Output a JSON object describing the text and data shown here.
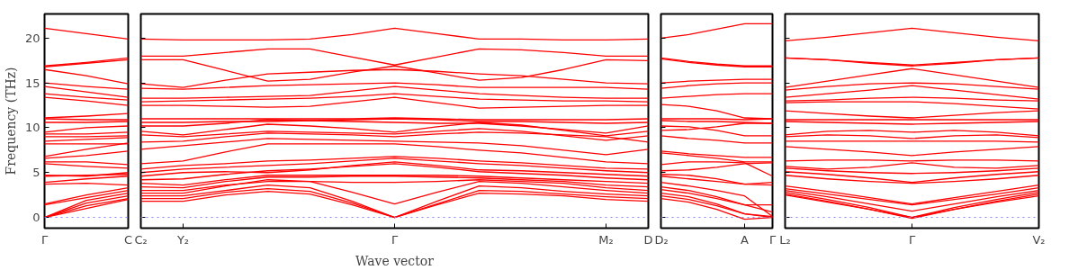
{
  "chart_data": [
    {
      "type": "line",
      "ylabel": "Frequency (THz)",
      "categories": [
        "Γ",
        null,
        "C"
      ],
      "ylim": [
        -1.2,
        22.7
      ],
      "yticks": [
        0,
        5,
        10,
        15,
        20
      ],
      "grid": false,
      "ref_lines": [
        {
          "axis": "y",
          "value": 0,
          "color": "#8080ff",
          "line_style": "dotted"
        }
      ],
      "series": [
        {
          "color": "#ff0000",
          "values": [
            21.1,
            20.5,
            19.9
          ]
        },
        {
          "color": "#ff0000",
          "values": [
            16.9,
            17.3,
            17.8
          ]
        },
        {
          "color": "#ff0000",
          "values": [
            16.8,
            17.2,
            17.6
          ]
        },
        {
          "color": "#ff0000",
          "values": [
            16.5,
            15.8,
            14.9
          ]
        },
        {
          "color": "#ff0000",
          "values": [
            15.0,
            14.6,
            14.3
          ]
        },
        {
          "color": "#ff0000",
          "values": [
            14.6,
            14.0,
            13.4
          ]
        },
        {
          "color": "#ff0000",
          "values": [
            13.8,
            13.4,
            13.1
          ]
        },
        {
          "color": "#ff0000",
          "values": [
            13.4,
            13.0,
            12.5
          ]
        },
        {
          "color": "#ff0000",
          "values": [
            11.1,
            11.3,
            11.6
          ]
        },
        {
          "color": "#ff0000",
          "values": [
            11.0,
            10.9,
            10.9
          ]
        },
        {
          "color": "#ff0000",
          "values": [
            10.6,
            10.6,
            10.7
          ]
        },
        {
          "color": "#ff0000",
          "values": [
            9.5,
            10.0,
            10.2
          ]
        },
        {
          "color": "#ff0000",
          "values": [
            9.3,
            9.3,
            9.5
          ]
        },
        {
          "color": "#ff0000",
          "values": [
            9.0,
            9.0,
            9.1
          ]
        },
        {
          "color": "#ff0000",
          "values": [
            8.5,
            8.7,
            8.9
          ]
        },
        {
          "color": "#ff0000",
          "values": [
            8.2,
            8.2,
            8.2
          ]
        },
        {
          "color": "#ff0000",
          "values": [
            6.8,
            7.6,
            8.3
          ]
        },
        {
          "color": "#ff0000",
          "values": [
            6.6,
            6.9,
            7.4
          ]
        },
        {
          "color": "#ff0000",
          "values": [
            6.2,
            6.2,
            5.9
          ]
        },
        {
          "color": "#ff0000",
          "values": [
            6.0,
            5.7,
            5.5
          ]
        },
        {
          "color": "#ff0000",
          "values": [
            4.7,
            4.6,
            5.0
          ]
        },
        {
          "color": "#ff0000",
          "values": [
            4.6,
            4.7,
            4.8
          ]
        },
        {
          "color": "#ff0000",
          "values": [
            3.9,
            4.3,
            4.6
          ]
        },
        {
          "color": "#ff0000",
          "values": [
            3.7,
            3.8,
            3.6
          ]
        },
        {
          "color": "#ff0000",
          "values": [
            1.5,
            2.5,
            3.3
          ]
        },
        {
          "color": "#ff0000",
          "values": [
            1.4,
            2.2,
            3.0
          ]
        },
        {
          "color": "#ff0000",
          "values": [
            0.0,
            1.9,
            2.7
          ]
        },
        {
          "color": "#ff0000",
          "values": [
            0.0,
            1.6,
            2.4
          ]
        },
        {
          "color": "#ff0000",
          "values": [
            0.0,
            1.3,
            2.1
          ]
        },
        {
          "color": "#ff0000",
          "values": [
            0.0,
            1.0,
            2.0
          ]
        }
      ]
    },
    {
      "type": "line",
      "xlabel": "Wave vector",
      "categories": [
        "C₂",
        "Y₂",
        null,
        null,
        null,
        null,
        "Γ",
        null,
        null,
        null,
        null,
        "M₂",
        "D"
      ],
      "ylim": [
        -1.2,
        22.7
      ],
      "yticks": [
        0,
        5,
        10,
        15,
        20
      ],
      "tick_labels": "x",
      "grid": false,
      "ref_lines": [
        {
          "axis": "y",
          "value": 0,
          "color": "#8080ff",
          "line_style": "dotted"
        }
      ],
      "series": [
        {
          "color": "#ff0000",
          "values": [
            19.9,
            19.8,
            19.8,
            19.8,
            19.9,
            20.4,
            21.1,
            20.5,
            19.9,
            19.9,
            19.8,
            19.8,
            19.9
          ]
        },
        {
          "color": "#ff0000",
          "values": [
            18.0,
            18.0,
            18.4,
            18.8,
            18.8,
            17.9,
            17.0,
            17.9,
            18.8,
            18.7,
            18.4,
            18.0,
            18.0
          ]
        },
        {
          "color": "#ff0000",
          "values": [
            17.6,
            17.6,
            16.4,
            15.2,
            15.4,
            16.2,
            16.9,
            16.1,
            15.3,
            15.6,
            16.5,
            17.6,
            17.5
          ]
        },
        {
          "color": "#ff0000",
          "values": [
            14.9,
            14.5,
            15.3,
            16.0,
            16.2,
            16.4,
            16.5,
            16.3,
            16.0,
            15.8,
            15.4,
            15.0,
            14.9
          ]
        },
        {
          "color": "#ff0000",
          "values": [
            14.4,
            14.3,
            14.5,
            14.7,
            14.8,
            14.9,
            15.0,
            14.8,
            14.5,
            14.5,
            14.5,
            14.5,
            14.3
          ]
        },
        {
          "color": "#ff0000",
          "values": [
            13.3,
            13.3,
            13.4,
            13.5,
            13.6,
            14.1,
            14.6,
            14.2,
            13.8,
            13.6,
            13.4,
            13.3,
            13.3
          ]
        },
        {
          "color": "#ff0000",
          "values": [
            12.9,
            13.0,
            13.1,
            13.2,
            13.3,
            13.5,
            13.8,
            13.5,
            13.2,
            13.1,
            13.0,
            13.0,
            12.9
          ]
        },
        {
          "color": "#ff0000",
          "values": [
            12.5,
            12.5,
            12.4,
            12.3,
            12.4,
            12.9,
            13.4,
            12.8,
            12.2,
            12.3,
            12.4,
            12.5,
            12.5
          ]
        },
        {
          "color": "#ff0000",
          "values": [
            11.0,
            11.0,
            11.0,
            11.0,
            11.0,
            11.0,
            11.1,
            11.0,
            10.9,
            10.9,
            10.9,
            10.9,
            11.0
          ]
        },
        {
          "color": "#ff0000",
          "values": [
            10.6,
            10.6,
            10.7,
            10.7,
            10.8,
            10.9,
            11.0,
            10.9,
            10.7,
            10.7,
            10.6,
            10.5,
            10.6
          ]
        },
        {
          "color": "#ff0000",
          "values": [
            10.2,
            10.2,
            10.5,
            10.9,
            10.8,
            10.7,
            10.6,
            10.5,
            10.5,
            10.2,
            9.8,
            9.4,
            10.2
          ]
        },
        {
          "color": "#ff0000",
          "values": [
            9.6,
            9.2,
            9.8,
            10.4,
            10.2,
            9.9,
            9.5,
            10.1,
            10.6,
            10.3,
            9.7,
            9.1,
            9.6
          ]
        },
        {
          "color": "#ff0000",
          "values": [
            9.2,
            9.0,
            9.3,
            9.6,
            9.5,
            9.4,
            9.3,
            9.6,
            9.9,
            9.6,
            9.1,
            8.6,
            9.1
          ]
        },
        {
          "color": "#ff0000",
          "values": [
            8.4,
            8.5,
            9.0,
            9.4,
            9.3,
            9.2,
            9.0,
            9.3,
            9.5,
            9.4,
            9.2,
            9.0,
            8.4
          ]
        },
        {
          "color": "#ff0000",
          "values": [
            7.6,
            8.0,
            8.4,
            8.8,
            8.7,
            8.6,
            8.5,
            8.4,
            8.3,
            8.0,
            7.5,
            7.0,
            7.6
          ]
        },
        {
          "color": "#ff0000",
          "values": [
            6.0,
            6.3,
            7.3,
            8.2,
            8.2,
            8.2,
            8.2,
            7.9,
            7.5,
            7.2,
            6.7,
            6.2,
            6.0
          ]
        },
        {
          "color": "#ff0000",
          "values": [
            5.4,
            5.8,
            6.0,
            6.3,
            6.4,
            6.6,
            6.8,
            6.6,
            6.3,
            6.1,
            5.8,
            5.5,
            5.4
          ]
        },
        {
          "color": "#ff0000",
          "values": [
            5.0,
            5.4,
            5.6,
            5.8,
            6.0,
            6.3,
            6.6,
            6.3,
            6.0,
            5.8,
            5.5,
            5.2,
            5.0
          ]
        },
        {
          "color": "#ff0000",
          "values": [
            4.6,
            5.0,
            5.1,
            5.0,
            5.3,
            5.8,
            6.2,
            5.8,
            5.3,
            5.2,
            5.0,
            4.8,
            4.6
          ]
        },
        {
          "color": "#ff0000",
          "values": [
            4.2,
            4.3,
            4.8,
            5.2,
            5.4,
            5.7,
            6.0,
            5.6,
            5.1,
            4.9,
            4.7,
            4.4,
            4.2
          ]
        },
        {
          "color": "#ff0000",
          "values": [
            3.8,
            3.6,
            4.2,
            4.7,
            4.7,
            4.7,
            4.7,
            4.7,
            4.6,
            4.4,
            4.2,
            4.0,
            3.8
          ]
        },
        {
          "color": "#ff0000",
          "values": [
            3.4,
            3.3,
            4.0,
            4.5,
            4.5,
            4.6,
            4.6,
            4.5,
            4.4,
            4.2,
            4.0,
            3.6,
            3.4
          ]
        },
        {
          "color": "#ff0000",
          "values": [
            3.0,
            3.0,
            3.6,
            4.0,
            4.0,
            3.9,
            3.9,
            4.0,
            4.2,
            4.0,
            3.8,
            3.3,
            3.0
          ]
        },
        {
          "color": "#ff0000",
          "values": [
            2.7,
            2.7,
            3.5,
            4.2,
            4.0,
            2.8,
            1.5,
            2.8,
            4.0,
            3.8,
            3.4,
            3.0,
            2.7
          ]
        },
        {
          "color": "#ff0000",
          "values": [
            2.4,
            2.4,
            3.0,
            3.6,
            3.3,
            1.8,
            0.0,
            1.8,
            3.5,
            3.3,
            2.9,
            2.6,
            2.4
          ]
        },
        {
          "color": "#ff0000",
          "values": [
            2.1,
            2.1,
            2.8,
            3.2,
            2.9,
            1.6,
            0.0,
            1.5,
            3.0,
            2.9,
            2.6,
            2.3,
            2.1
          ]
        },
        {
          "color": "#ff0000",
          "values": [
            1.8,
            1.8,
            2.5,
            2.9,
            2.6,
            1.4,
            0.0,
            1.4,
            2.7,
            2.6,
            2.4,
            2.0,
            1.8
          ]
        }
      ]
    },
    {
      "type": "line",
      "categories": [
        "D₂",
        null,
        null,
        "A",
        "Γ"
      ],
      "ylim": [
        -1.2,
        22.7
      ],
      "yticks": [
        0,
        5,
        10,
        15,
        20
      ],
      "tick_labels": "x",
      "grid": false,
      "ref_lines": [
        {
          "axis": "y",
          "value": 0,
          "color": "#8080ff",
          "line_style": "dotted"
        }
      ],
      "series": [
        {
          "color": "#ff0000",
          "values": [
            20.0,
            20.4,
            21.0,
            21.6,
            21.6
          ]
        },
        {
          "color": "#ff0000",
          "values": [
            17.8,
            17.4,
            17.1,
            16.9,
            16.9
          ]
        },
        {
          "color": "#ff0000",
          "values": [
            17.7,
            17.3,
            17.0,
            16.8,
            16.8
          ]
        },
        {
          "color": "#ff0000",
          "values": [
            15.0,
            15.2,
            15.3,
            15.4,
            15.4
          ]
        },
        {
          "color": "#ff0000",
          "values": [
            14.4,
            14.7,
            14.9,
            15.0,
            15.0
          ]
        },
        {
          "color": "#ff0000",
          "values": [
            13.3,
            13.5,
            13.7,
            13.8,
            13.8
          ]
        },
        {
          "color": "#ff0000",
          "values": [
            12.6,
            12.4,
            11.9,
            11.1,
            11.0
          ]
        },
        {
          "color": "#ff0000",
          "values": [
            11.0,
            11.0,
            11.0,
            10.9,
            11.0
          ]
        },
        {
          "color": "#ff0000",
          "values": [
            10.8,
            10.7,
            10.7,
            10.6,
            10.5
          ]
        },
        {
          "color": "#ff0000",
          "values": [
            10.2,
            10.1,
            9.7,
            9.1,
            9.1
          ]
        },
        {
          "color": "#ff0000",
          "values": [
            9.7,
            9.8,
            10.1,
            10.5,
            10.5
          ]
        },
        {
          "color": "#ff0000",
          "values": [
            9.1,
            8.8,
            8.6,
            8.3,
            8.3
          ]
        },
        {
          "color": "#ff0000",
          "values": [
            7.4,
            7.1,
            6.9,
            6.7,
            6.7
          ]
        },
        {
          "color": "#ff0000",
          "values": [
            7.2,
            6.9,
            6.6,
            6.2,
            6.2
          ]
        },
        {
          "color": "#ff0000",
          "values": [
            5.9,
            6.2,
            6.2,
            6.1,
            4.6
          ]
        },
        {
          "color": "#ff0000",
          "values": [
            5.2,
            5.3,
            5.6,
            6.0,
            6.1
          ]
        },
        {
          "color": "#ff0000",
          "values": [
            4.8,
            4.7,
            4.3,
            3.7,
            3.9
          ]
        },
        {
          "color": "#ff0000",
          "values": [
            4.6,
            4.3,
            4.0,
            3.7,
            3.6
          ]
        },
        {
          "color": "#ff0000",
          "values": [
            3.9,
            3.5,
            3.0,
            2.4,
            0.1
          ]
        },
        {
          "color": "#ff0000",
          "values": [
            3.4,
            3.0,
            2.3,
            1.4,
            1.4
          ]
        },
        {
          "color": "#ff0000",
          "values": [
            3.1,
            2.7,
            2.1,
            1.4,
            0.6
          ]
        },
        {
          "color": "#ff0000",
          "values": [
            2.7,
            2.3,
            1.5,
            0.4,
            0.1
          ]
        },
        {
          "color": "#ff0000",
          "values": [
            2.4,
            2.0,
            1.3,
            0.4,
            0.0
          ]
        },
        {
          "color": "#ff0000",
          "values": [
            2.1,
            1.7,
            0.9,
            -0.2,
            0.0
          ]
        }
      ]
    },
    {
      "type": "line",
      "categories": [
        "L₂",
        null,
        null,
        "Γ",
        null,
        null,
        "V₂"
      ],
      "ylim": [
        -1.2,
        22.7
      ],
      "yticks": [
        0,
        5,
        10,
        15,
        20
      ],
      "tick_labels": "x",
      "grid": false,
      "ref_lines": [
        {
          "axis": "y",
          "value": 0,
          "color": "#8080ff",
          "line_style": "dotted"
        }
      ],
      "series": [
        {
          "color": "#ff0000",
          "values": [
            19.7,
            20.1,
            20.6,
            21.1,
            20.6,
            20.1,
            19.7
          ]
        },
        {
          "color": "#ff0000",
          "values": [
            17.8,
            17.6,
            17.3,
            17.0,
            17.3,
            17.6,
            17.8
          ]
        },
        {
          "color": "#ff0000",
          "values": [
            17.8,
            17.6,
            17.2,
            16.9,
            17.2,
            17.6,
            17.8
          ]
        },
        {
          "color": "#ff0000",
          "values": [
            14.5,
            15.2,
            15.9,
            16.6,
            15.9,
            15.2,
            14.5
          ]
        },
        {
          "color": "#ff0000",
          "values": [
            14.2,
            14.6,
            14.9,
            15.0,
            14.9,
            14.6,
            14.3
          ]
        },
        {
          "color": "#ff0000",
          "values": [
            13.4,
            13.8,
            14.2,
            14.7,
            14.2,
            13.7,
            13.2
          ]
        },
        {
          "color": "#ff0000",
          "values": [
            13.0,
            13.1,
            13.3,
            13.4,
            13.3,
            13.1,
            13.0
          ]
        },
        {
          "color": "#ff0000",
          "values": [
            12.8,
            12.9,
            12.9,
            12.9,
            12.7,
            12.4,
            12.1
          ]
        },
        {
          "color": "#ff0000",
          "values": [
            11.9,
            11.6,
            11.3,
            11.1,
            11.4,
            11.7,
            11.9
          ]
        },
        {
          "color": "#ff0000",
          "values": [
            10.9,
            10.9,
            10.9,
            10.9,
            10.9,
            10.9,
            10.9
          ]
        },
        {
          "color": "#ff0000",
          "values": [
            10.7,
            10.6,
            10.5,
            10.4,
            10.5,
            10.6,
            10.7
          ]
        },
        {
          "color": "#ff0000",
          "values": [
            9.2,
            9.6,
            9.7,
            9.5,
            9.7,
            9.5,
            9.1
          ]
        },
        {
          "color": "#ff0000",
          "values": [
            9.0,
            9.2,
            9.1,
            8.8,
            9.1,
            9.2,
            8.9
          ]
        },
        {
          "color": "#ff0000",
          "values": [
            8.5,
            8.5,
            8.5,
            8.5,
            8.5,
            8.5,
            8.4
          ]
        },
        {
          "color": "#ff0000",
          "values": [
            7.9,
            7.6,
            7.3,
            6.9,
            7.3,
            7.6,
            7.9
          ]
        },
        {
          "color": "#ff0000",
          "values": [
            6.3,
            6.4,
            6.4,
            6.3,
            6.4,
            6.4,
            6.3
          ]
        },
        {
          "color": "#ff0000",
          "values": [
            5.7,
            5.4,
            5.6,
            6.1,
            5.6,
            5.5,
            5.8
          ]
        },
        {
          "color": "#ff0000",
          "values": [
            5.5,
            5.2,
            5.0,
            4.9,
            5.0,
            5.2,
            5.5
          ]
        },
        {
          "color": "#ff0000",
          "values": [
            5.1,
            4.8,
            4.4,
            3.9,
            4.4,
            4.8,
            5.1
          ]
        },
        {
          "color": "#ff0000",
          "values": [
            4.7,
            4.3,
            4.0,
            3.8,
            4.0,
            4.3,
            4.7
          ]
        },
        {
          "color": "#ff0000",
          "values": [
            3.5,
            2.9,
            2.2,
            1.5,
            2.2,
            2.9,
            3.6
          ]
        },
        {
          "color": "#ff0000",
          "values": [
            3.2,
            2.6,
            2.0,
            1.4,
            2.0,
            2.6,
            3.3
          ]
        },
        {
          "color": "#ff0000",
          "values": [
            3.0,
            2.3,
            1.5,
            0.7,
            1.5,
            2.3,
            3.0
          ]
        },
        {
          "color": "#ff0000",
          "values": [
            2.8,
            2.0,
            1.1,
            0.0,
            1.1,
            2.0,
            2.8
          ]
        },
        {
          "color": "#ff0000",
          "values": [
            2.6,
            1.8,
            0.9,
            -0.1,
            0.9,
            1.8,
            2.6
          ]
        },
        {
          "color": "#ff0000",
          "values": [
            2.5,
            1.7,
            0.9,
            0.0,
            0.9,
            1.7,
            2.4
          ]
        }
      ]
    }
  ]
}
